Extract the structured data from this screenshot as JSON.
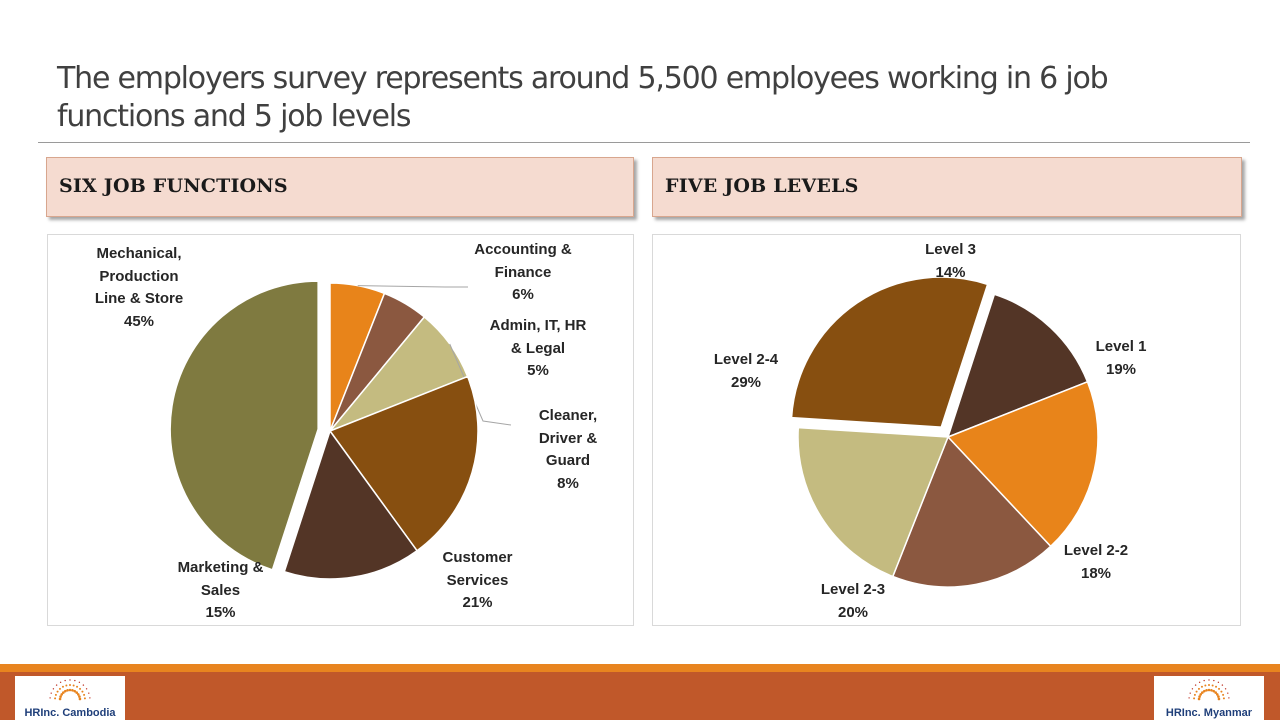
{
  "slide": {
    "title": "The employers survey represents around 5,500 employees working in 6 job functions and 5 job levels"
  },
  "colors": {
    "header_bg": "#f5dbd0",
    "footer_line": "#e8841f",
    "footer_band": "#c0582a"
  },
  "left_panel": {
    "header": "SIX JOB FUNCTIONS"
  },
  "right_panel": {
    "header": "FIVE JOB LEVELS"
  },
  "chart_data": [
    {
      "type": "pie",
      "title": "SIX JOB FUNCTIONS",
      "slices": [
        {
          "label": "Accounting & Finance",
          "value": 6,
          "display": "Accounting &\nFinance\n6%",
          "color": "#e8841a",
          "exploded": false
        },
        {
          "label": "Admin, IT, HR & Legal",
          "value": 5,
          "display": "Admin, IT, HR\n& Legal\n5%",
          "color": "#8b5840",
          "exploded": false
        },
        {
          "label": "Cleaner, Driver & Guard",
          "value": 8,
          "display": "Cleaner,\nDriver &\nGuard\n8%",
          "color": "#c4bb80",
          "exploded": false
        },
        {
          "label": "Customer Services",
          "value": 21,
          "display": "Customer\nServices\n21%",
          "color": "#874f10",
          "exploded": false
        },
        {
          "label": "Marketing & Sales",
          "value": 15,
          "display": "Marketing &\nSales\n15%",
          "color": "#533526",
          "exploded": false
        },
        {
          "label": "Mechanical, Production Line & Store",
          "value": 45,
          "display": "Mechanical,\nProduction\nLine & Store\n45%",
          "color": "#7f7a40",
          "exploded": true
        }
      ]
    },
    {
      "type": "pie",
      "title": "FIVE JOB LEVELS",
      "slices": [
        {
          "label": "Level 3",
          "value": 14,
          "display": "Level 3\n14%",
          "color": "#533526",
          "exploded": false
        },
        {
          "label": "Level 1",
          "value": 19,
          "display": "Level 1\n19%",
          "color": "#e8841a",
          "exploded": false
        },
        {
          "label": "Level 2-2",
          "value": 18,
          "display": "Level 2-2\n18%",
          "color": "#8b5840",
          "exploded": false
        },
        {
          "label": "Level 2-3",
          "value": 20,
          "display": "Level 2-3\n20%",
          "color": "#c4bb80",
          "exploded": false
        },
        {
          "label": "Level 2-4",
          "value": 29,
          "display": "Level 2-4\n29%",
          "color": "#874f10",
          "exploded": true
        }
      ]
    }
  ],
  "footer": {
    "logo_left": {
      "brand": "HRInc. Cambodia"
    },
    "logo_right": {
      "brand": "HRInc. Myanmar"
    }
  }
}
